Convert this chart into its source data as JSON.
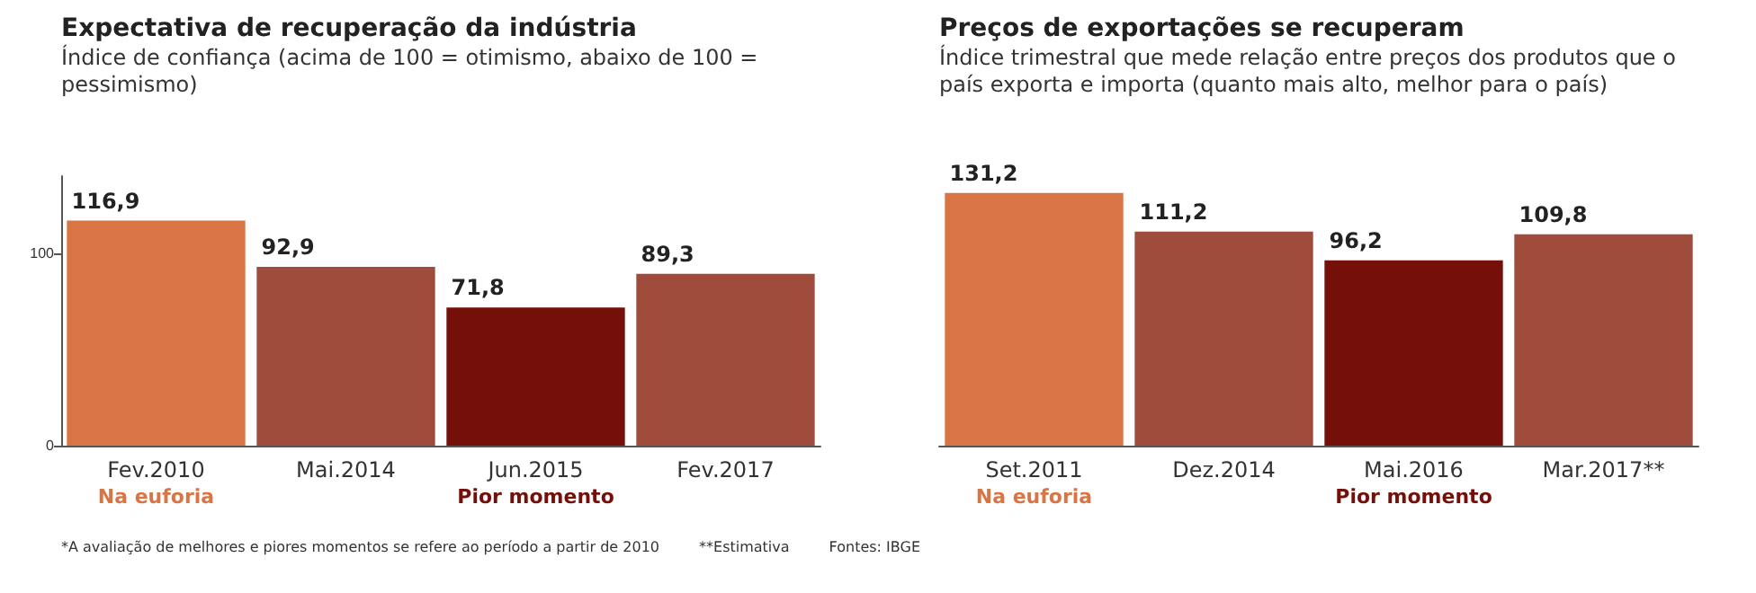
{
  "chart_data": [
    {
      "type": "bar",
      "title": "Expectativa de recuperação da indústria",
      "subtitle": "Índice de confiança (acima de 100 = otimismo, abaixo de 100 = pessimismo)",
      "categories": [
        "Fev.2010\nNa euforia",
        "Mai.2014",
        "Jun.2015\nPior momento",
        "Fev.2017"
      ],
      "values": [
        116.9,
        92.9,
        71.8,
        89.3
      ],
      "value_labels": [
        "116,9",
        "92,9",
        "71,8",
        "89,3"
      ],
      "colors": [
        "#d97545",
        "#a04c3c",
        "#741009",
        "#a04c3c"
      ],
      "ylim": [
        0,
        140
      ],
      "yticks": [
        0,
        100
      ],
      "grid": false,
      "annotations": [
        "*A avaliação de melhores e piores momentos se refere ao período a partir de 2010",
        "**Estimativa",
        "Fontes: IBGE"
      ]
    },
    {
      "type": "bar",
      "title": "Preços de exportações se recuperam",
      "subtitle": "Índice trimestral que mede relação entre preços dos produtos que o país exporta e importa (quanto mais alto, melhor para o país)",
      "categories": [
        "Set.2011\nNa euforia",
        "Dez.2014",
        "Mai.2016\nPior momento",
        "Mar.2017**"
      ],
      "values": [
        131.2,
        111.2,
        96.2,
        109.8
      ],
      "value_labels": [
        "131,2",
        "111,2",
        "96,2",
        "109,8"
      ],
      "colors": [
        "#d97545",
        "#a04c3c",
        "#741009",
        "#a04c3c"
      ],
      "grid": false,
      "tick_labels": "x"
    }
  ]
}
